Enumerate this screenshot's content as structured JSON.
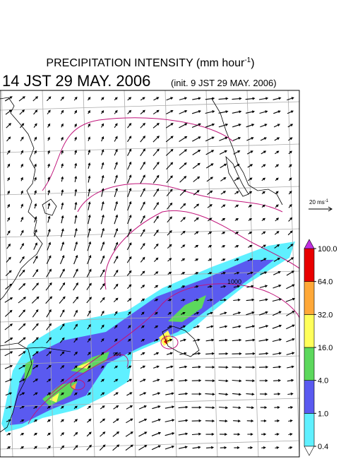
{
  "header": {
    "title": "PRECIPITATION INTENSITY (mm hour",
    "title_sup": "-1",
    "title_end": ")",
    "time": "14 JST 29 MAY. 2006",
    "init": "(init. 9 JST 29 MAY. 2006)"
  },
  "reference_vector": {
    "label": "20 ms",
    "sup": "-1"
  },
  "contour_labels": [
    "1000",
    "996"
  ],
  "colorbar": {
    "ticks": [
      {
        "value": 0.4,
        "label": "0.4"
      },
      {
        "value": 1,
        "label": "1.0"
      },
      {
        "value": 4,
        "label": "4.0"
      },
      {
        "value": 16,
        "label": "16.0"
      },
      {
        "value": 32,
        "label": "32.0"
      },
      {
        "value": 64,
        "label": "64.0"
      },
      {
        "value": 100,
        "label": "100.0"
      }
    ],
    "colors": [
      "#5ff0ff",
      "#5a5af0",
      "#5cd85c",
      "#ffff5a",
      "#ffa838",
      "#e80000"
    ],
    "over_color": "#c030e0",
    "under_color": "#ffffff"
  }
}
